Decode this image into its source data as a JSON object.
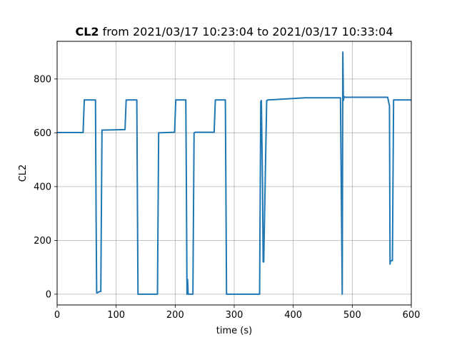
{
  "chart_data": {
    "type": "line",
    "title_bold": "CL2",
    "title_rest": " from 2021/03/17 10:23:04 to 2021/03/17 10:33:04",
    "xlabel": "time (s)",
    "ylabel": "CL2",
    "xlim": [
      0,
      600
    ],
    "ylim": [
      -40,
      940
    ],
    "xticks": [
      0,
      100,
      200,
      300,
      400,
      500,
      600
    ],
    "yticks": [
      0,
      200,
      400,
      600,
      800
    ],
    "grid": true,
    "series_color": "#1f77b4",
    "series": [
      {
        "x": [
          0,
          44,
          46,
          65,
          66,
          67,
          68,
          72,
          74,
          76,
          115,
          117,
          135,
          137,
          170,
          172,
          199,
          201,
          218,
          219,
          220,
          221,
          222,
          230,
          232,
          234,
          266,
          268,
          285,
          287,
          343,
          345,
          346,
          348,
          349,
          350,
          355,
          357,
          420,
          480,
          483,
          484,
          485,
          486,
          488,
          560,
          563,
          564,
          565,
          568,
          570,
          600
        ],
        "y": [
          601,
          601,
          722,
          722,
          300,
          5,
          5,
          10,
          10,
          610,
          612,
          722,
          722,
          0,
          0,
          600,
          602,
          722,
          722,
          400,
          0,
          55,
          0,
          0,
          600,
          602,
          602,
          722,
          722,
          0,
          0,
          715,
          720,
          400,
          120,
          120,
          720,
          722,
          730,
          730,
          0,
          900,
          720,
          735,
          732,
          732,
          700,
          112,
          125,
          125,
          722,
          722
        ]
      }
    ]
  }
}
